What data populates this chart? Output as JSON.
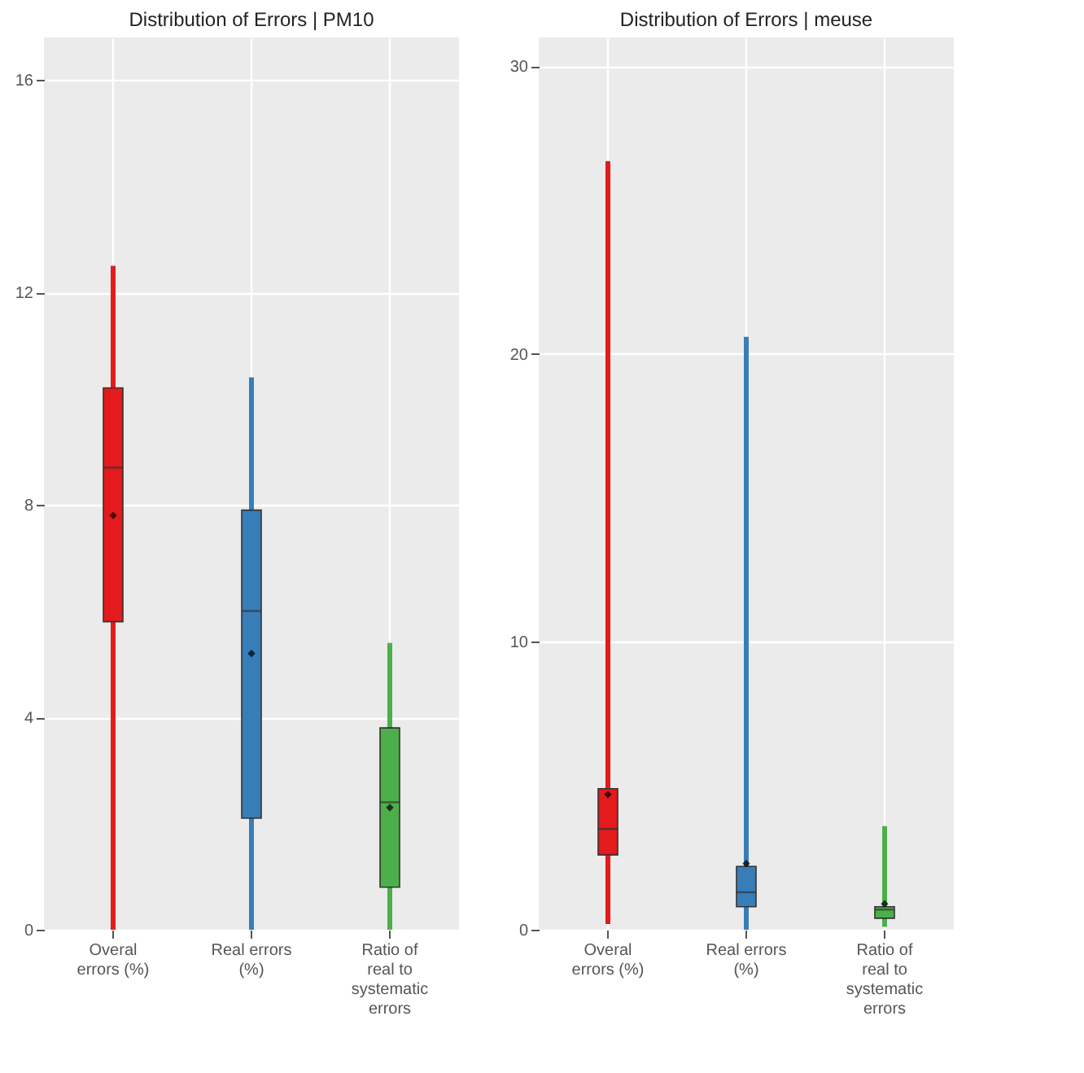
{
  "chart_data": [
    {
      "type": "box",
      "title": "Distribution of Errors | PM10",
      "categories": [
        "Overal errors (%)",
        "Real errors (%)",
        "Ratio of real to systematic errors"
      ],
      "colors": [
        "#e41a1c",
        "#377eb8",
        "#4daf4a"
      ],
      "ylim": [
        0,
        16.8
      ],
      "yticks": [
        0,
        4,
        8,
        12,
        16
      ],
      "grid": true,
      "boxes": [
        {
          "low": 0,
          "q1": 5.8,
          "median": 8.7,
          "q3": 10.2,
          "high": 12.5,
          "mean": 7.8
        },
        {
          "low": 0,
          "q1": 2.1,
          "median": 6.0,
          "q3": 7.9,
          "high": 10.4,
          "mean": 5.2
        },
        {
          "low": 0,
          "q1": 0.8,
          "median": 2.4,
          "q3": 3.8,
          "high": 5.4,
          "mean": 2.3
        }
      ]
    },
    {
      "type": "box",
      "title": "Distribution of Errors | meuse",
      "categories": [
        "Overal errors (%)",
        "Real errors (%)",
        "Ratio of real to systematic errors"
      ],
      "colors": [
        "#e41a1c",
        "#377eb8",
        "#4daf4a"
      ],
      "ylim": [
        0,
        31
      ],
      "yticks": [
        0,
        10,
        20,
        30
      ],
      "grid": true,
      "boxes": [
        {
          "low": 0.2,
          "q1": 2.6,
          "median": 3.5,
          "q3": 4.9,
          "high": 26.7,
          "mean": 4.7
        },
        {
          "low": 0,
          "q1": 0.8,
          "median": 1.3,
          "q3": 2.2,
          "high": 20.6,
          "mean": 2.3
        },
        {
          "low": 0.1,
          "q1": 0.4,
          "median": 0.7,
          "q3": 0.8,
          "high": 3.6,
          "mean": 0.9
        }
      ]
    }
  ]
}
